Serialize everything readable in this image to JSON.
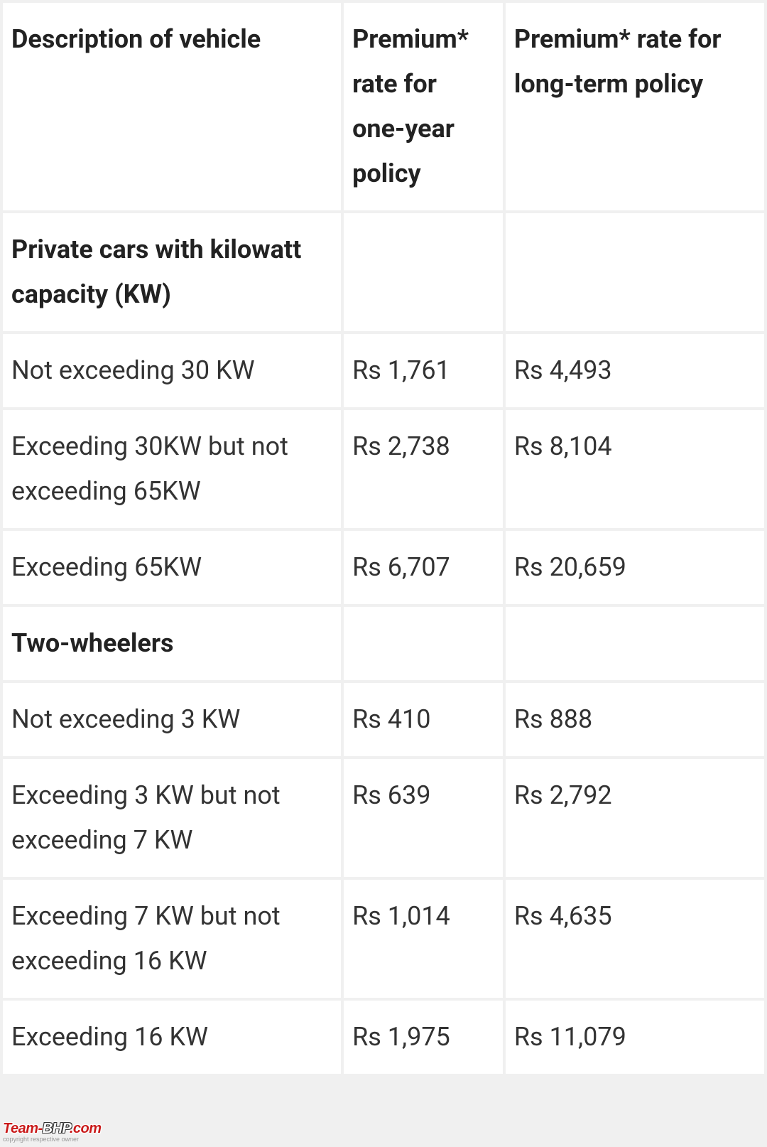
{
  "table": {
    "headers": {
      "description": "Description of vehicle",
      "oneYear": "Premium* rate for one-year policy",
      "longTerm": "Premium* rate for long-term policy"
    },
    "sections": [
      {
        "title": "Private cars with kilowatt capacity (KW)",
        "rows": [
          {
            "desc": "Not exceeding 30 KW",
            "one": "Rs 1,761",
            "long": "Rs 4,493"
          },
          {
            "desc": "Exceeding 30KW but not exceeding 65KW",
            "one": "Rs 2,738",
            "long": "Rs 8,104"
          },
          {
            "desc": "Exceeding 65KW",
            "one": "Rs 6,707",
            "long": "Rs 20,659"
          }
        ]
      },
      {
        "title": "Two-wheelers",
        "rows": [
          {
            "desc": "Not exceeding 3 KW",
            "one": "Rs 410",
            "long": "Rs 888"
          },
          {
            "desc": "Exceeding 3 KW but not exceeding 7 KW",
            "one": "Rs 639",
            "long": "Rs 2,792"
          },
          {
            "desc": "Exceeding 7 KW but not exceeding 16 KW",
            "one": "Rs 1,014",
            "long": "Rs 4,635"
          },
          {
            "desc": "Exceeding 16 KW",
            "one": "Rs 1,975",
            "long": "Rs 11,079"
          }
        ]
      }
    ]
  },
  "watermark": {
    "team": "Team-",
    "bhp": "BHP",
    "com": ".com",
    "tag": "copyright respective owner"
  },
  "styling": {
    "background": "#f0f0f0",
    "cellBackground": "#ffffff",
    "textColor": "#333333",
    "headerColor": "#222222",
    "fontSize": 36,
    "lineHeight": 1.75,
    "borderSpacing": 4,
    "columnWidths": {
      "desc": 485,
      "one": 225,
      "long": 370
    }
  }
}
